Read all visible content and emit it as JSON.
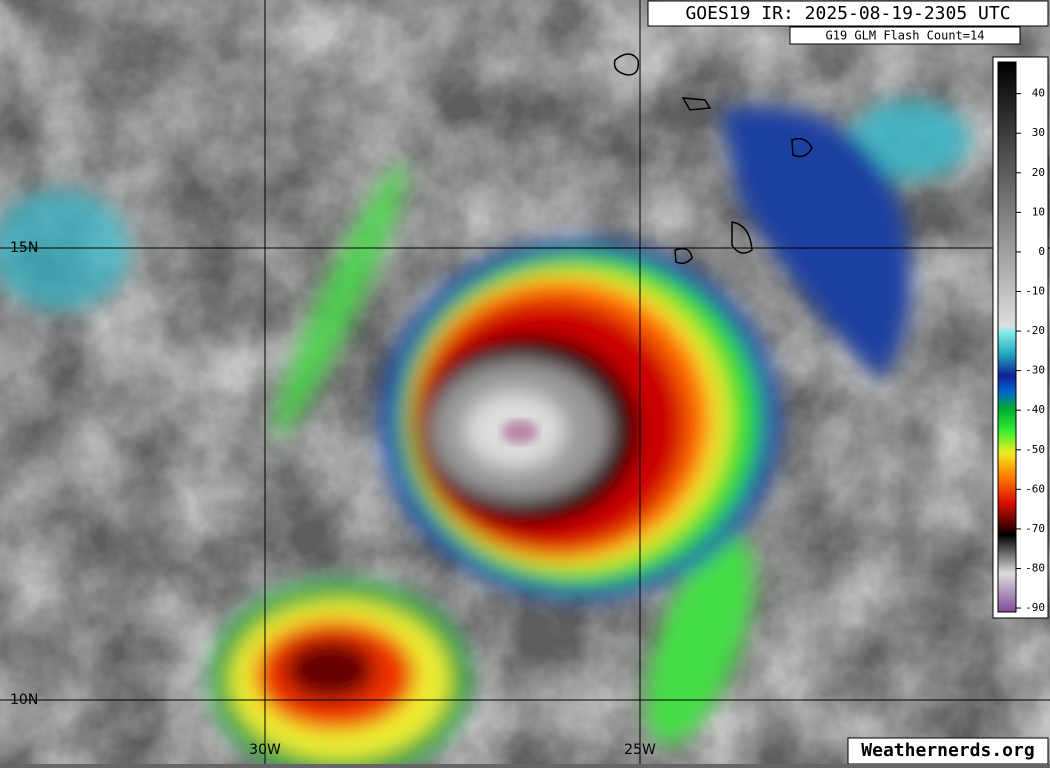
{
  "header": {
    "title": "GOES19 IR: 2025-08-19-2305 UTC",
    "flash_count": "G19 GLM Flash Count=14"
  },
  "grid_labels": {
    "lat": [
      "15N",
      "10N"
    ],
    "lon": [
      "30W",
      "25W"
    ]
  },
  "colorbar": {
    "range": [
      -91,
      48
    ],
    "ticks": [
      40,
      30,
      20,
      10,
      0,
      -10,
      -20,
      -30,
      -40,
      -50,
      -60,
      -70,
      -80,
      -90
    ]
  },
  "watermark": "Weathernerds.org"
}
